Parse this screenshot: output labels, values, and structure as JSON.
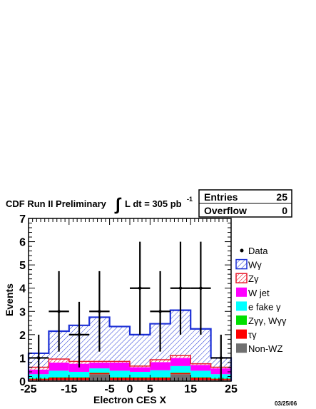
{
  "header": {
    "run_label": "CDF Run II Preliminary",
    "integral_sign": "∫",
    "lumi_text": "L dt = 305 pb",
    "lumi_exp": "-1"
  },
  "stats_box": {
    "entries_label": "Entries",
    "entries_value": "25",
    "overflow_label": "Overflow",
    "overflow_value": "0"
  },
  "date": "03/25/06",
  "colors": {
    "wgamma_line": "#1b2fd6",
    "wgamma_hatch": "#1b2fd6",
    "zgamma": "#e8192c",
    "wjet": "#ff00ff",
    "efake": "#00ffff",
    "zgg": "#00e000",
    "tau": "#ff0000",
    "nonwz": "#707070"
  },
  "chart_data": {
    "type": "histogram",
    "xlabel": "Electron CES X",
    "ylabel": "Events",
    "xlim": [
      -25,
      25
    ],
    "ylim": [
      0,
      7
    ],
    "x_ticks": [
      "-25",
      "-15",
      "-5",
      "0",
      "5",
      "15",
      "25"
    ],
    "y_ticks": [
      "0",
      "1",
      "2",
      "3",
      "4",
      "5",
      "6",
      "7"
    ],
    "bin_edges": [
      -25,
      -20,
      -15,
      -10,
      -5,
      0,
      5,
      10,
      15,
      20,
      25
    ],
    "stack": [
      {
        "name": "Non-WZ",
        "values": [
          0.05,
          0.05,
          0.05,
          0.3,
          0.05,
          0.05,
          0.05,
          0.3,
          0.05,
          0.05
        ]
      },
      {
        "name": "τγ",
        "values": [
          0.05,
          0.1,
          0.1,
          0.05,
          0.1,
          0.1,
          0.1,
          0.05,
          0.1,
          0.05
        ]
      },
      {
        "name": "Zγγ, Wγγ",
        "values": [
          0.02,
          0.02,
          0.02,
          0.02,
          0.02,
          0.02,
          0.02,
          0.02,
          0.02,
          0.02
        ]
      },
      {
        "name": "e fake γ",
        "values": [
          0.18,
          0.28,
          0.23,
          0.18,
          0.28,
          0.23,
          0.3,
          0.28,
          0.28,
          0.18
        ]
      },
      {
        "name": "W jet",
        "values": [
          0.2,
          0.35,
          0.35,
          0.25,
          0.35,
          0.2,
          0.35,
          0.35,
          0.25,
          0.25
        ]
      },
      {
        "name": "Zγ",
        "values": [
          0.1,
          0.15,
          0.1,
          0.05,
          0.05,
          0.05,
          0.1,
          0.1,
          0.05,
          0.05
        ]
      },
      {
        "name": "Wγ",
        "values": [
          0.6,
          1.2,
          1.55,
          1.9,
          1.5,
          1.35,
          1.55,
          1.95,
          1.5,
          0.4
        ]
      }
    ],
    "data": {
      "name": "Data",
      "values": [
        1,
        3,
        2,
        3,
        0,
        4,
        3,
        4,
        4,
        1
      ],
      "errors": [
        1.0,
        1.73,
        1.41,
        1.73,
        0,
        2.0,
        1.73,
        2.0,
        2.0,
        1.0
      ]
    },
    "legend": {
      "placement": "right",
      "entries": [
        "Data",
        "Wγ",
        "Zγ",
        "W jet",
        "e fake γ",
        "Zγγ, Wγγ",
        "τγ",
        "Non-WZ"
      ]
    }
  }
}
